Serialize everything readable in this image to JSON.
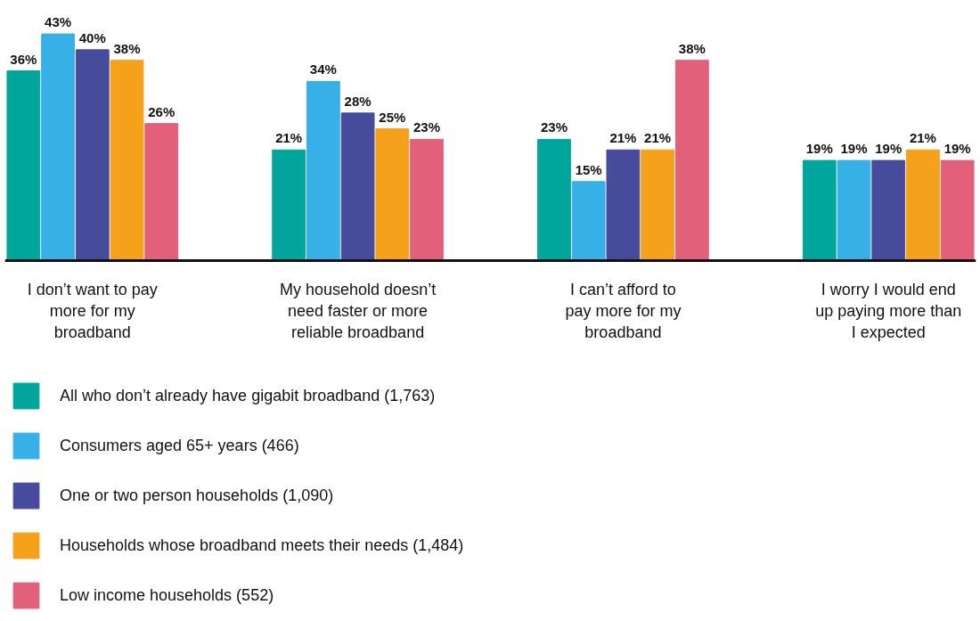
{
  "chart_data": {
    "type": "bar",
    "categories": [
      "I don’t want to pay more for my broadband",
      "My household doesn’t need faster or more reliable broadband",
      "I can’t afford to pay more for my broadband",
      "I worry I would end up paying more than I expected"
    ],
    "series": [
      {
        "name": "All who don’t already have gigabit broadband (1,763)",
        "color": "#00a69c",
        "values": [
          36,
          21,
          23,
          19
        ],
        "value_labels": [
          "36%",
          "21%",
          "23%",
          "19%"
        ]
      },
      {
        "name": "Consumers aged 65+ years (466)",
        "color": "#36b0e6",
        "values": [
          43,
          34,
          15,
          19
        ],
        "value_labels": [
          "43%",
          "34%",
          "15%",
          "19%"
        ]
      },
      {
        "name": "One or two person households (1,090)",
        "color": "#474b9c",
        "values": [
          40,
          28,
          21,
          19
        ],
        "value_labels": [
          "40%",
          "28%",
          "21%",
          "19%"
        ]
      },
      {
        "name": "Households whose broadband meets their needs (1,484)",
        "color": "#f5a11c",
        "values": [
          38,
          25,
          21,
          21
        ],
        "value_labels": [
          "38%",
          "25%",
          "21%",
          "21%"
        ]
      },
      {
        "name": "Low income households (552)",
        "color": "#e2607a",
        "values": [
          26,
          23,
          38,
          19
        ],
        "value_labels": [
          "26%",
          "23%",
          "38%",
          "19%"
        ]
      }
    ],
    "legend": "bottom left",
    "grid": false
  }
}
